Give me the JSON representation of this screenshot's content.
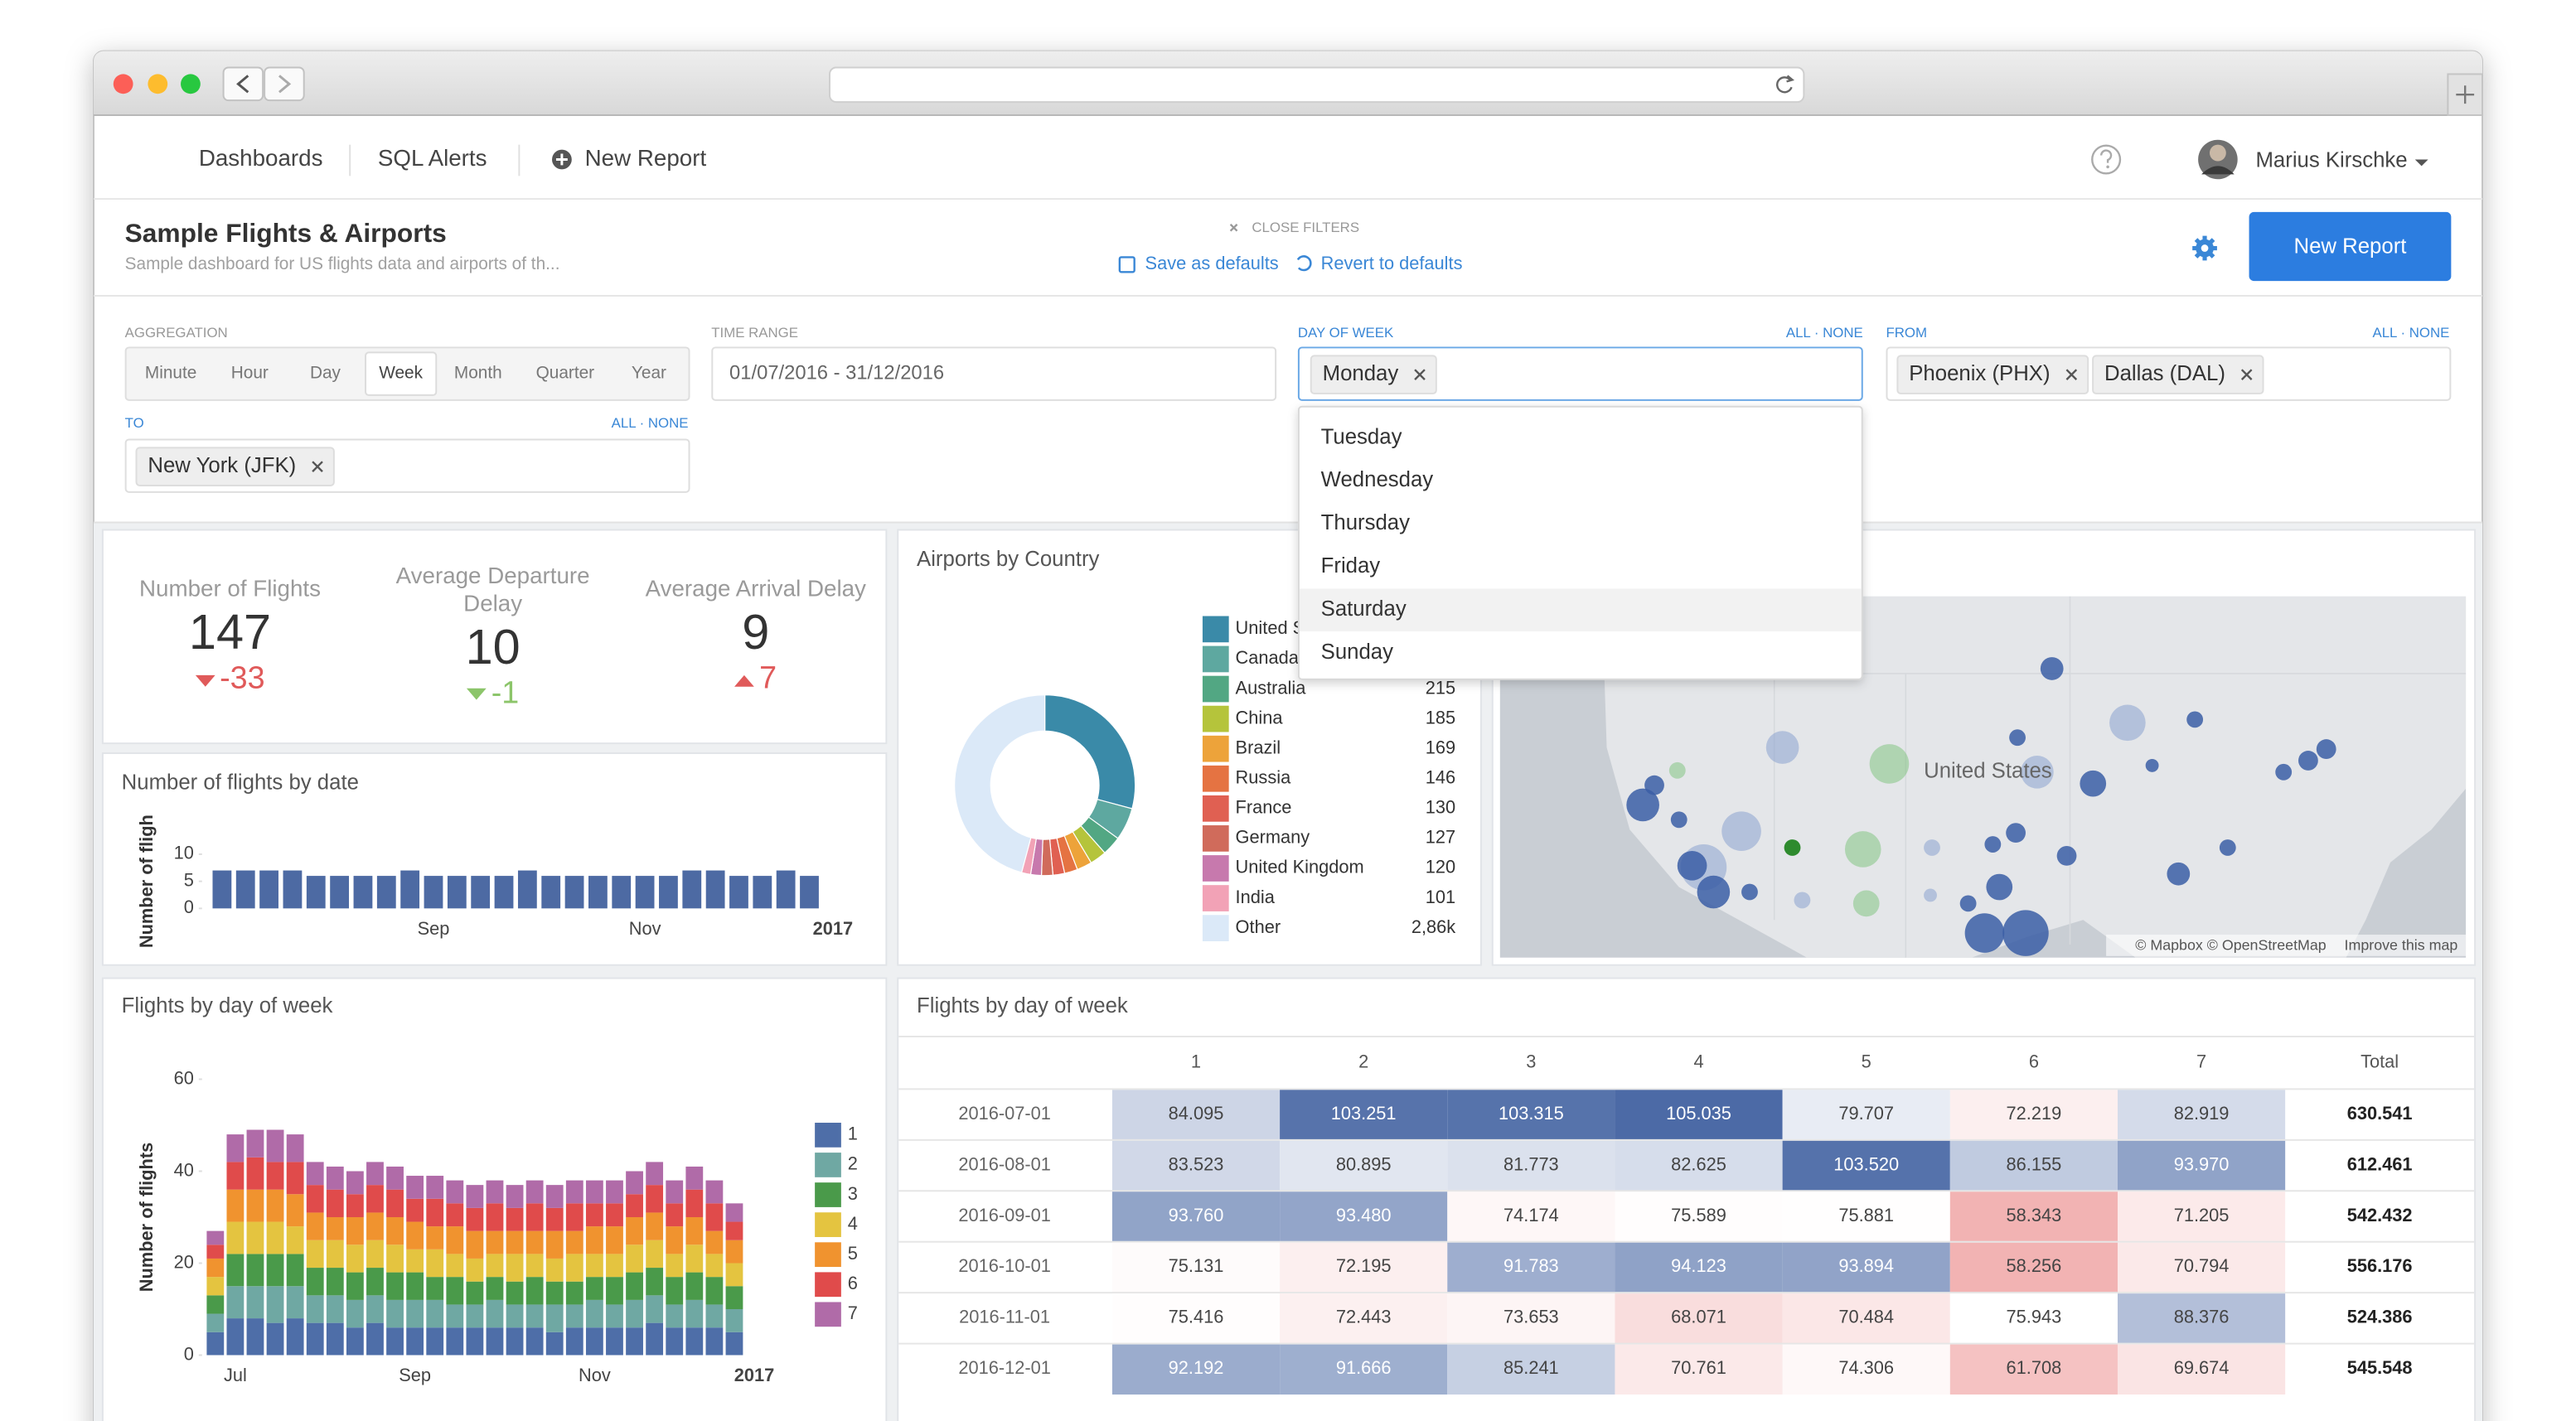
{
  "nav": {
    "links": [
      "Dashboards",
      "SQL Alerts"
    ],
    "new_report": "New Report",
    "user": "Marius Kirschke"
  },
  "header": {
    "title": "Sample Flights & Airports",
    "subtitle": "Sample dashboard for US flights data and airports of th...",
    "close_filters": "CLOSE FILTERS",
    "save_defaults": "Save as defaults",
    "revert_defaults": "Revert to defaults",
    "button": "New Report"
  },
  "filters": {
    "all_none": "ALL · NONE",
    "aggregation": {
      "label": "AGGREGATION",
      "options": [
        "Minute",
        "Hour",
        "Day",
        "Week",
        "Month",
        "Quarter",
        "Year"
      ],
      "selected_index": 3
    },
    "time_range": {
      "label": "TIME RANGE",
      "value": "01/07/2016 - 31/12/2016"
    },
    "day_of_week": {
      "label": "DAY OF WEEK",
      "tags": [
        "Monday"
      ],
      "options": [
        "Tuesday",
        "Wednesday",
        "Thursday",
        "Friday",
        "Saturday",
        "Sunday"
      ],
      "highlighted_index": 4
    },
    "from": {
      "label": "FROM",
      "tags": [
        "Phoenix (PHX)",
        "Dallas (DAL)"
      ]
    },
    "to": {
      "label": "TO",
      "tags": [
        "New York (JFK)"
      ]
    }
  },
  "kpis": [
    {
      "label": "Number of Flights",
      "value": 147,
      "delta": -33,
      "delta_color": "#e05a5a"
    },
    {
      "label": "Average Departure Delay",
      "value": 10,
      "delta": -1,
      "delta_color": "#8cc56a"
    },
    {
      "label": "Average Arrival Delay",
      "value": 9,
      "delta": 7,
      "delta_color": "#e05a5a"
    }
  ],
  "chart_data": [
    {
      "type": "bar",
      "title": "Number of flights by date",
      "y_label": "Number of fligh",
      "categories": [
        null,
        null,
        null,
        null,
        null,
        null,
        null,
        null,
        null,
        "Sep",
        null,
        null,
        null,
        null,
        null,
        null,
        null,
        null,
        "Nov",
        null,
        null,
        null,
        null,
        null,
        null,
        null,
        "2017"
      ],
      "values": [
        7,
        7,
        7,
        7,
        6,
        6,
        6,
        6,
        7,
        6,
        6,
        6,
        6,
        7,
        6,
        6,
        6,
        6,
        6,
        6,
        7,
        7,
        6,
        6,
        7,
        6,
        null
      ],
      "color": "#4d6aa3",
      "ylim": [
        0,
        10
      ],
      "yticks": [
        0,
        5,
        10
      ]
    },
    {
      "type": "pie",
      "title": "Airports by Country",
      "categories": [
        "United States",
        "Canada",
        "Australia",
        "China",
        "Brazil",
        "Russia",
        "France",
        "Germany",
        "United Kingdom",
        "India",
        "Other"
      ],
      "values": [
        1820,
        364,
        215,
        185,
        169,
        146,
        130,
        127,
        120,
        101,
        2860
      ],
      "value_labels": [
        null,
        null,
        "215",
        "185",
        "169",
        "146",
        "130",
        "127",
        "120",
        "101",
        "2,86k"
      ],
      "colors": [
        "#3a8aa8",
        "#5ea8a0",
        "#52a783",
        "#b5c43b",
        "#eda33a",
        "#e57342",
        "#e06052",
        "#d06b5b",
        "#c779ad",
        "#f2a2b6",
        "#dbe9f8"
      ]
    },
    {
      "type": "bar",
      "stacked": true,
      "title": "Flights by day of week",
      "y_label": "Number of flights",
      "categories": [
        null,
        "Jul",
        null,
        null,
        null,
        null,
        null,
        null,
        null,
        null,
        "Sep",
        null,
        null,
        null,
        null,
        null,
        null,
        null,
        null,
        "Nov",
        null,
        null,
        null,
        null,
        null,
        null,
        null,
        "2017"
      ],
      "series": [
        {
          "name": "1",
          "color": "#4e6ea8",
          "values": [
            5,
            8,
            8,
            7,
            8,
            7,
            7,
            6,
            7,
            6,
            6,
            6,
            6,
            6,
            6,
            6,
            6,
            5,
            6,
            6,
            6,
            6,
            7,
            6,
            6,
            6,
            5,
            null
          ]
        },
        {
          "name": "2",
          "color": "#6fa8a3",
          "values": [
            4,
            7,
            7,
            8,
            7,
            6,
            6,
            6,
            6,
            6,
            6,
            6,
            5,
            5,
            6,
            5,
            5,
            6,
            5,
            6,
            5,
            6,
            6,
            5,
            6,
            5,
            5,
            null
          ]
        },
        {
          "name": "3",
          "color": "#4a9a4a",
          "values": [
            4,
            7,
            7,
            7,
            7,
            6,
            6,
            6,
            6,
            6,
            6,
            5,
            6,
            5,
            5,
            5,
            6,
            5,
            5,
            5,
            6,
            6,
            6,
            6,
            6,
            6,
            5,
            null
          ]
        },
        {
          "name": "4",
          "color": "#e4c440",
          "values": [
            4,
            7,
            7,
            7,
            6,
            6,
            6,
            6,
            6,
            6,
            5,
            6,
            5,
            5,
            5,
            6,
            5,
            5,
            6,
            5,
            5,
            6,
            6,
            5,
            6,
            5,
            5,
            null
          ]
        },
        {
          "name": "5",
          "color": "#f0932f",
          "values": [
            4,
            7,
            7,
            7,
            7,
            6,
            5,
            6,
            6,
            6,
            6,
            5,
            6,
            6,
            5,
            5,
            5,
            6,
            5,
            6,
            6,
            6,
            6,
            6,
            6,
            5,
            5,
            null
          ]
        },
        {
          "name": "6",
          "color": "#e04b4b",
          "values": [
            3,
            6,
            7,
            6,
            7,
            6,
            6,
            5,
            6,
            6,
            5,
            6,
            5,
            5,
            6,
            5,
            6,
            5,
            6,
            5,
            5,
            5,
            6,
            5,
            6,
            6,
            4,
            null
          ]
        },
        {
          "name": "7",
          "color": "#b06ba8",
          "values": [
            3,
            6,
            6,
            7,
            6,
            5,
            5,
            5,
            5,
            5,
            5,
            5,
            5,
            5,
            5,
            5,
            5,
            5,
            5,
            5,
            5,
            5,
            5,
            5,
            5,
            5,
            4,
            null
          ]
        }
      ],
      "ylim": [
        0,
        60
      ],
      "yticks": [
        0,
        20,
        40,
        60
      ]
    }
  ],
  "map": {
    "label": "United States",
    "attribution": "© Mapbox © OpenStreetMap",
    "link": "Improve this map"
  },
  "table": {
    "title": "Flights by day of week",
    "columns": [
      "1",
      "2",
      "3",
      "4",
      "5",
      "6",
      "7",
      "Total"
    ],
    "rows": [
      [
        "2016-07-01",
        "84.095",
        "103.251",
        "103.315",
        "105.035",
        "79.707",
        "72.219",
        "82.919",
        "630.541"
      ],
      [
        "2016-08-01",
        "83.523",
        "80.895",
        "81.773",
        "82.625",
        "103.520",
        "86.155",
        "93.970",
        "612.461"
      ],
      [
        "2016-09-01",
        "93.760",
        "93.480",
        "74.174",
        "75.589",
        "75.881",
        "58.343",
        "71.205",
        "542.432"
      ],
      [
        "2016-10-01",
        "75.131",
        "72.195",
        "91.783",
        "94.123",
        "93.894",
        "58.256",
        "70.794",
        "556.176"
      ],
      [
        "2016-11-01",
        "75.416",
        "72.443",
        "73.653",
        "68.071",
        "70.484",
        "75.943",
        "88.376",
        "524.386"
      ],
      [
        "2016-12-01",
        "92.192",
        "91.666",
        "85.241",
        "70.761",
        "74.306",
        "61.708",
        "69.674",
        "545.548"
      ]
    ]
  }
}
